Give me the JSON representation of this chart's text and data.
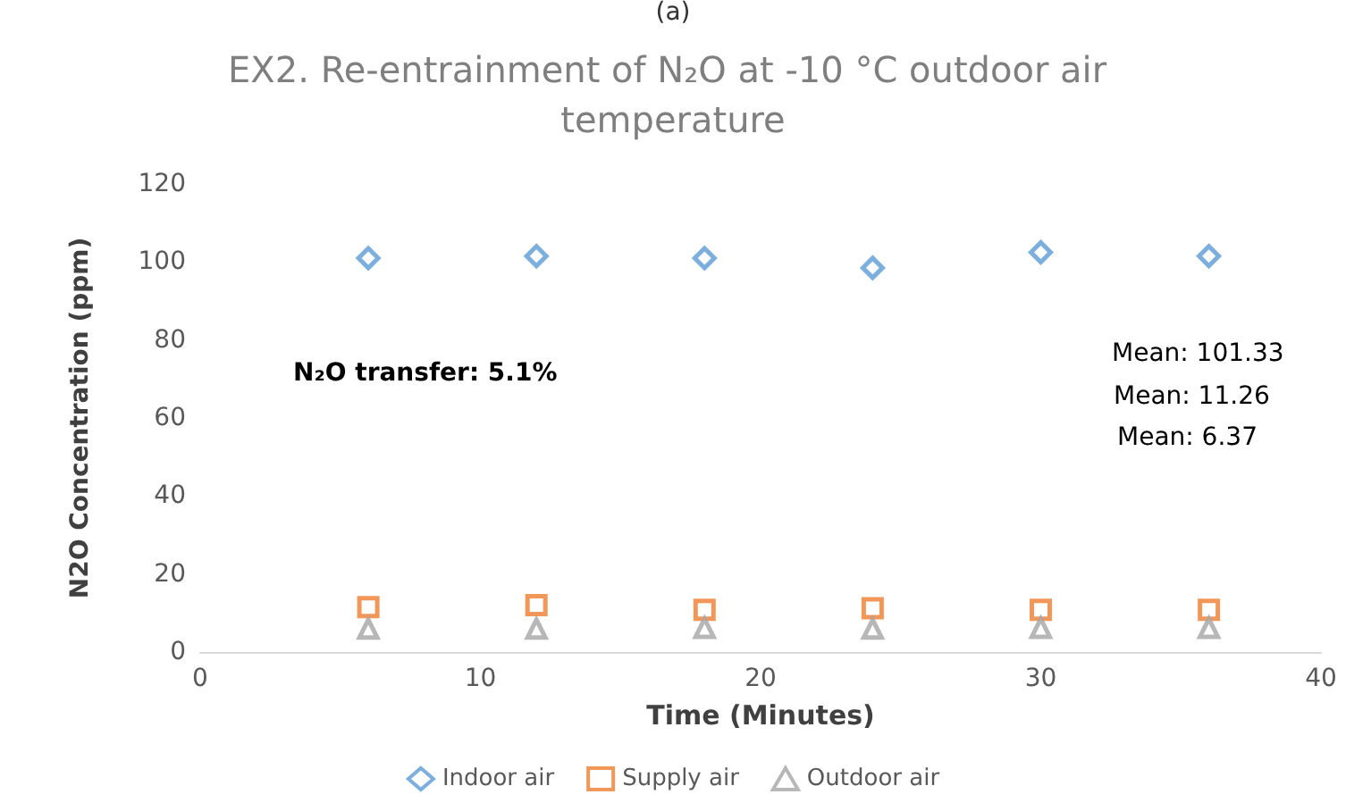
{
  "chart_data": {
    "type": "scatter",
    "title": "EX2. Re-entrainment of N₂O at -10 °C outdoor air temperature",
    "xlabel": "Time (Minutes)",
    "ylabel": "N2O Concentration (ppm)",
    "x": [
      6,
      12,
      18,
      24,
      30,
      36
    ],
    "series": [
      {
        "name": "Indoor air",
        "color": "#5b9bd5",
        "marker": "diamond",
        "values": [
          101,
          101.5,
          101,
          98.5,
          102.5,
          101.5
        ]
      },
      {
        "name": "Supply air",
        "color": "#ed7d31",
        "marker": "square",
        "values": [
          11.5,
          12,
          10.8,
          11.2,
          10.8,
          10.8
        ]
      },
      {
        "name": "Outdoor air",
        "color": "#a5a5a5",
        "marker": "triangle",
        "values": [
          6,
          6,
          6.2,
          6,
          6.2,
          6.2
        ]
      }
    ],
    "xlim": [
      0,
      40
    ],
    "xticks": [
      0,
      10,
      20,
      30,
      40
    ],
    "ylim": [
      0,
      120
    ],
    "yticks": [
      0,
      20,
      40,
      60,
      80,
      100,
      120
    ],
    "grid": false,
    "legend": "bottom",
    "annotations": [
      "(a)",
      "N₂O transfer: 5.1%",
      "Mean: 101.33",
      "Mean: 11.26",
      "Mean: 6.37"
    ]
  }
}
